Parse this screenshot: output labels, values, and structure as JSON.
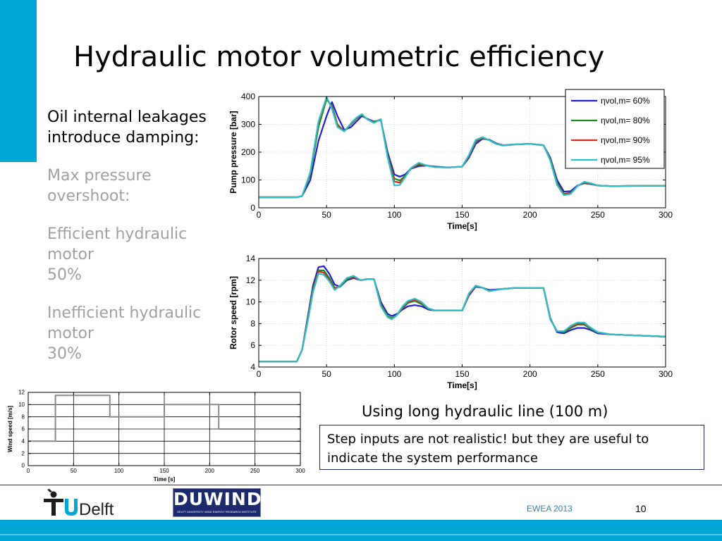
{
  "slide": {
    "title": "Hydraulic motor volumetric efficiency",
    "bullets": {
      "line1": "Oil internal leakages",
      "line2": "introduce damping:",
      "max1": "Max pressure",
      "max2": "overshoot:",
      "eff1": "Efficient hydraulic",
      "eff2": "motor",
      "eff3": "50%",
      "ineff1": "Inefficient hydraulic",
      "ineff2": "motor",
      "ineff3": "30%"
    },
    "caption": "Using long hydraulic line (100 m)",
    "note": "Step inputs are not realistic! but they are useful to indicate the system performance",
    "footer": {
      "conference": "EWEA 2013",
      "page": "10",
      "logo_tud": "TUDelft",
      "logo_duwind": "DUWIND",
      "logo_duwind_sub": "DELFT UNIVERSITY WIND ENERGY RESEARCH INSTITUTE"
    }
  },
  "colors": {
    "accent": "#00a6d6",
    "s60": "#1f1fd6",
    "s80": "#178a17",
    "s90": "#d62b1f",
    "s95": "#2cc0c8"
  },
  "chart_data": [
    {
      "type": "line",
      "ylabel": "Pump pressure [bar]",
      "xlabel": "Time[s]",
      "xlim": [
        0,
        300
      ],
      "ylim": [
        0,
        400
      ],
      "xticks": [
        0,
        50,
        100,
        150,
        200,
        250,
        300
      ],
      "yticks": [
        0,
        100,
        200,
        300,
        400
      ],
      "grid": true,
      "legend_position": "top-right",
      "legend": [
        "ηvol,m= 60%",
        "ηvol,m= 80%",
        "ηvol,m= 90%",
        "ηvol,m= 95%"
      ],
      "series": [
        {
          "name": "ηvol,m= 60%",
          "x": [
            0,
            28,
            32,
            38,
            44,
            50,
            54,
            58,
            63,
            68,
            72,
            76,
            80,
            85,
            90,
            95,
            100,
            104,
            108,
            112,
            118,
            124,
            130,
            140,
            150,
            155,
            160,
            165,
            170,
            175,
            180,
            190,
            200,
            210,
            215,
            220,
            225,
            230,
            235,
            240,
            245,
            250,
            260,
            280,
            300
          ],
          "y": [
            38,
            38,
            42,
            100,
            240,
            330,
            380,
            330,
            280,
            290,
            310,
            330,
            320,
            310,
            315,
            200,
            120,
            112,
            120,
            140,
            150,
            152,
            148,
            145,
            148,
            180,
            230,
            248,
            245,
            232,
            225,
            228,
            230,
            225,
            180,
            100,
            58,
            60,
            80,
            88,
            85,
            80,
            78,
            79,
            79
          ]
        },
        {
          "name": "ηvol,m= 80%",
          "x": [
            0,
            28,
            32,
            38,
            44,
            50,
            54,
            58,
            63,
            68,
            72,
            76,
            80,
            85,
            90,
            95,
            100,
            104,
            108,
            112,
            118,
            124,
            130,
            140,
            150,
            155,
            160,
            165,
            170,
            175,
            180,
            190,
            200,
            210,
            215,
            220,
            225,
            230,
            235,
            240,
            245,
            250,
            260,
            280,
            300
          ],
          "y": [
            38,
            38,
            42,
            120,
            290,
            390,
            365,
            300,
            275,
            300,
            320,
            335,
            318,
            308,
            318,
            190,
            105,
            98,
            115,
            140,
            155,
            152,
            146,
            145,
            148,
            185,
            238,
            250,
            243,
            230,
            224,
            228,
            230,
            225,
            175,
            90,
            50,
            55,
            78,
            90,
            86,
            80,
            78,
            79,
            79
          ]
        },
        {
          "name": "ηvol,m= 90%",
          "x": [
            0,
            28,
            32,
            38,
            44,
            50,
            54,
            58,
            63,
            68,
            72,
            76,
            80,
            85,
            90,
            95,
            100,
            104,
            108,
            112,
            118,
            124,
            130,
            140,
            150,
            155,
            160,
            165,
            170,
            175,
            180,
            190,
            200,
            210,
            215,
            220,
            225,
            230,
            235,
            240,
            245,
            250,
            260,
            280,
            300
          ],
          "y": [
            38,
            38,
            42,
            125,
            305,
            395,
            360,
            295,
            275,
            302,
            322,
            336,
            318,
            306,
            318,
            185,
            95,
            90,
            112,
            140,
            158,
            152,
            146,
            145,
            148,
            187,
            240,
            252,
            243,
            230,
            224,
            228,
            230,
            225,
            172,
            85,
            48,
            52,
            78,
            92,
            87,
            80,
            78,
            79,
            79
          ]
        },
        {
          "name": "ηvol,m= 95%",
          "x": [
            0,
            28,
            32,
            38,
            44,
            50,
            54,
            58,
            63,
            68,
            72,
            76,
            80,
            85,
            90,
            95,
            100,
            104,
            108,
            112,
            118,
            124,
            130,
            140,
            150,
            155,
            160,
            165,
            170,
            175,
            180,
            190,
            200,
            210,
            215,
            220,
            225,
            230,
            235,
            240,
            245,
            250,
            260,
            280,
            300
          ],
          "y": [
            38,
            38,
            42,
            128,
            310,
            398,
            355,
            290,
            275,
            304,
            324,
            337,
            318,
            305,
            318,
            182,
            80,
            82,
            110,
            142,
            162,
            152,
            146,
            145,
            148,
            190,
            244,
            254,
            243,
            230,
            224,
            228,
            230,
            225,
            170,
            82,
            45,
            50,
            78,
            94,
            88,
            80,
            78,
            79,
            79
          ]
        }
      ]
    },
    {
      "type": "line",
      "ylabel": "Rotor speed [rpm]",
      "xlabel": "Time[s]",
      "xlim": [
        0,
        300
      ],
      "ylim": [
        4,
        14
      ],
      "xticks": [
        0,
        50,
        100,
        150,
        200,
        250,
        300
      ],
      "yticks": [
        4,
        6,
        8,
        10,
        12,
        14
      ],
      "grid": true,
      "series": [
        {
          "name": "ηvol,m= 60%",
          "x": [
            0,
            28,
            32,
            36,
            40,
            44,
            48,
            52,
            56,
            60,
            65,
            70,
            75,
            80,
            85,
            90,
            95,
            98,
            102,
            106,
            110,
            115,
            120,
            125,
            130,
            140,
            150,
            155,
            160,
            165,
            170,
            180,
            190,
            200,
            210,
            215,
            220,
            225,
            230,
            235,
            240,
            245,
            250,
            260,
            280,
            300
          ],
          "y": [
            4.5,
            4.5,
            5.6,
            8.5,
            11.5,
            13.2,
            13.3,
            12.6,
            11.6,
            11.4,
            12.0,
            12.2,
            12.0,
            12.1,
            12.1,
            10.0,
            8.9,
            8.7,
            8.9,
            9.3,
            9.6,
            9.7,
            9.6,
            9.3,
            9.2,
            9.2,
            9.2,
            10.6,
            11.4,
            11.3,
            11.1,
            11.2,
            11.3,
            11.3,
            11.3,
            8.5,
            7.2,
            7.1,
            7.4,
            7.6,
            7.6,
            7.4,
            7.1,
            7.0,
            6.9,
            6.8
          ]
        },
        {
          "name": "ηvol,m= 80%",
          "x": [
            0,
            28,
            32,
            36,
            40,
            44,
            48,
            52,
            56,
            60,
            65,
            70,
            75,
            80,
            85,
            90,
            95,
            98,
            102,
            106,
            110,
            115,
            120,
            125,
            130,
            140,
            150,
            155,
            160,
            165,
            170,
            180,
            190,
            200,
            210,
            215,
            220,
            225,
            230,
            235,
            240,
            245,
            250,
            260,
            280,
            300
          ],
          "y": [
            4.5,
            4.5,
            5.6,
            8.3,
            11.2,
            12.9,
            12.9,
            12.2,
            11.3,
            11.4,
            12.1,
            12.3,
            12.0,
            12.1,
            12.1,
            9.8,
            8.7,
            8.5,
            8.8,
            9.4,
            9.9,
            10.1,
            9.8,
            9.4,
            9.2,
            9.2,
            9.2,
            10.7,
            11.5,
            11.3,
            11.0,
            11.2,
            11.3,
            11.3,
            11.3,
            8.4,
            7.3,
            7.2,
            7.6,
            7.9,
            7.9,
            7.5,
            7.2,
            7.0,
            6.9,
            6.8
          ]
        },
        {
          "name": "ηvol,m= 90%",
          "x": [
            0,
            28,
            32,
            36,
            40,
            44,
            48,
            52,
            56,
            60,
            65,
            70,
            75,
            80,
            85,
            90,
            95,
            98,
            102,
            106,
            110,
            115,
            120,
            125,
            130,
            140,
            150,
            155,
            160,
            165,
            170,
            180,
            190,
            200,
            210,
            215,
            220,
            225,
            230,
            235,
            240,
            245,
            250,
            260,
            280,
            300
          ],
          "y": [
            4.5,
            4.5,
            5.6,
            8.2,
            11.0,
            12.8,
            12.7,
            12.0,
            11.2,
            11.5,
            12.2,
            12.3,
            12.0,
            12.1,
            12.1,
            9.7,
            8.6,
            8.4,
            8.8,
            9.5,
            10.0,
            10.2,
            9.9,
            9.4,
            9.2,
            9.2,
            9.2,
            10.7,
            11.5,
            11.3,
            11.0,
            11.2,
            11.3,
            11.3,
            11.3,
            8.4,
            7.3,
            7.3,
            7.7,
            8.0,
            8.0,
            7.6,
            7.2,
            7.0,
            6.9,
            6.8
          ]
        },
        {
          "name": "ηvol,m= 95%",
          "x": [
            0,
            28,
            32,
            36,
            40,
            44,
            48,
            52,
            56,
            60,
            65,
            70,
            75,
            80,
            85,
            90,
            95,
            98,
            102,
            106,
            110,
            115,
            120,
            125,
            130,
            140,
            150,
            155,
            160,
            165,
            170,
            180,
            190,
            200,
            210,
            215,
            220,
            225,
            230,
            235,
            240,
            245,
            250,
            260,
            280,
            300
          ],
          "y": [
            4.5,
            4.5,
            5.6,
            8.1,
            10.9,
            12.6,
            12.5,
            11.9,
            11.1,
            11.5,
            12.2,
            12.4,
            12.0,
            12.1,
            12.1,
            9.6,
            8.6,
            8.4,
            8.8,
            9.6,
            10.1,
            10.3,
            10.0,
            9.4,
            9.2,
            9.2,
            9.2,
            10.8,
            11.5,
            11.3,
            11.0,
            11.2,
            11.3,
            11.3,
            11.3,
            8.4,
            7.3,
            7.3,
            7.8,
            8.1,
            8.1,
            7.6,
            7.2,
            7.0,
            6.9,
            6.8
          ]
        }
      ]
    },
    {
      "type": "line",
      "ylabel": "Wind speed [m/s]",
      "xlabel": "Time [s]",
      "xlim": [
        0,
        300
      ],
      "ylim": [
        0,
        12
      ],
      "xticks": [
        0,
        50,
        100,
        150,
        200,
        250,
        300
      ],
      "yticks": [
        0,
        2,
        4,
        6,
        8,
        10,
        12
      ],
      "grid": true,
      "series": [
        {
          "x": [
            0,
            30,
            30,
            90,
            90,
            150,
            150,
            210,
            210,
            300
          ],
          "y": [
            4,
            4,
            11.5,
            11.5,
            8,
            8,
            10,
            10,
            6,
            6
          ]
        }
      ]
    }
  ]
}
